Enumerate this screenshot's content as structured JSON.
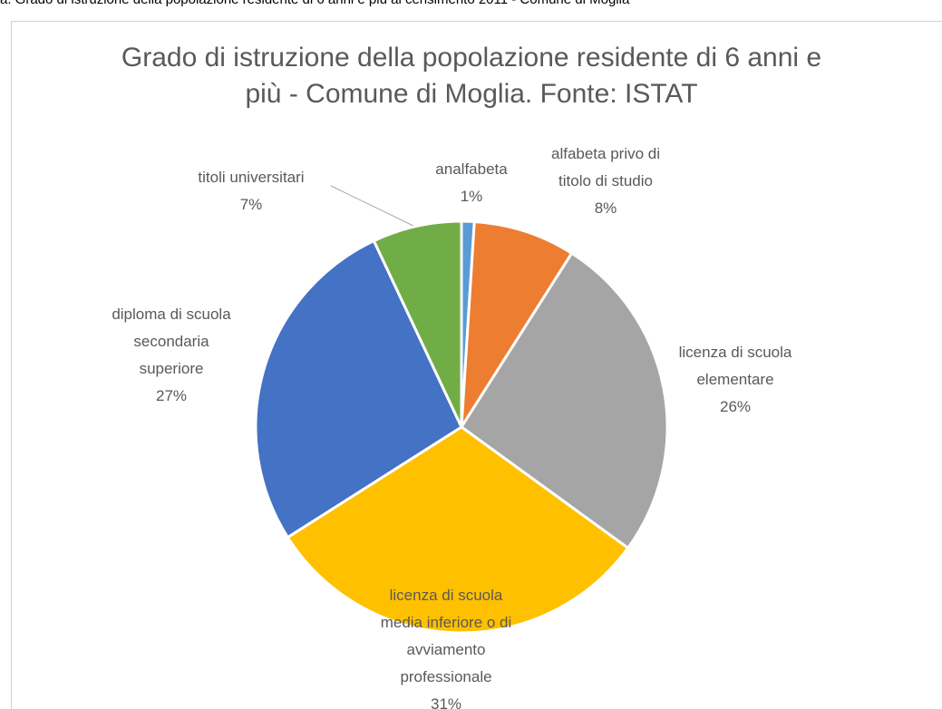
{
  "caption": "a. Grado di istruzione della popolazione residente di 6 anni e più al censimento 2011 - Comune di Moglia",
  "chart_data": {
    "type": "pie",
    "title": "Grado di istruzione della popolazione residente di 6 anni e più - Comune di Moglia. Fonte: ISTAT",
    "categories": [
      "analfabeta",
      "alfabeta privo di titolo di studio",
      "licenza di scuola elementare",
      "licenza di scuola media inferiore o di avviamento professionale",
      "diploma di scuola secondaria superiore",
      "titoli universitari"
    ],
    "values": [
      1,
      8,
      26,
      31,
      27,
      7
    ],
    "value_labels": [
      "1%",
      "8%",
      "26%",
      "31%",
      "27%",
      "7%"
    ],
    "colors": [
      "#5b9bd5",
      "#ed7d31",
      "#a5a5a5",
      "#ffc000",
      "#4472c4",
      "#70ad47"
    ]
  }
}
